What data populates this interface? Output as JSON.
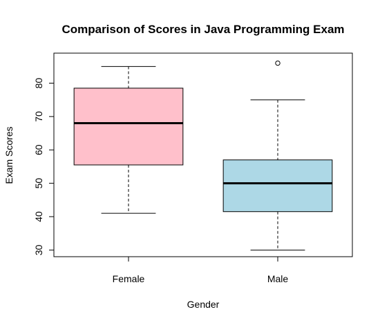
{
  "chart_data": {
    "type": "box",
    "title": "Comparison of Scores in Java Programming Exam",
    "xlabel": "Gender",
    "ylabel": "Exam Scores",
    "ylim": [
      28,
      89
    ],
    "yticks": [
      "30",
      "40",
      "50",
      "60",
      "70",
      "80"
    ],
    "categories": [
      "Female",
      "Male"
    ],
    "boxes": [
      {
        "category": "Female",
        "whisker_low": 41,
        "q1": 55.5,
        "median": 68,
        "q3": 78.5,
        "whisker_high": 85,
        "outliers": [],
        "color": "#FFC0CB"
      },
      {
        "category": "Male",
        "whisker_low": 30,
        "q1": 41.5,
        "median": 50,
        "q3": 57,
        "whisker_high": 75,
        "outliers": [
          86
        ],
        "color": "#ADD8E6"
      }
    ],
    "grid": false,
    "legend": "none"
  }
}
